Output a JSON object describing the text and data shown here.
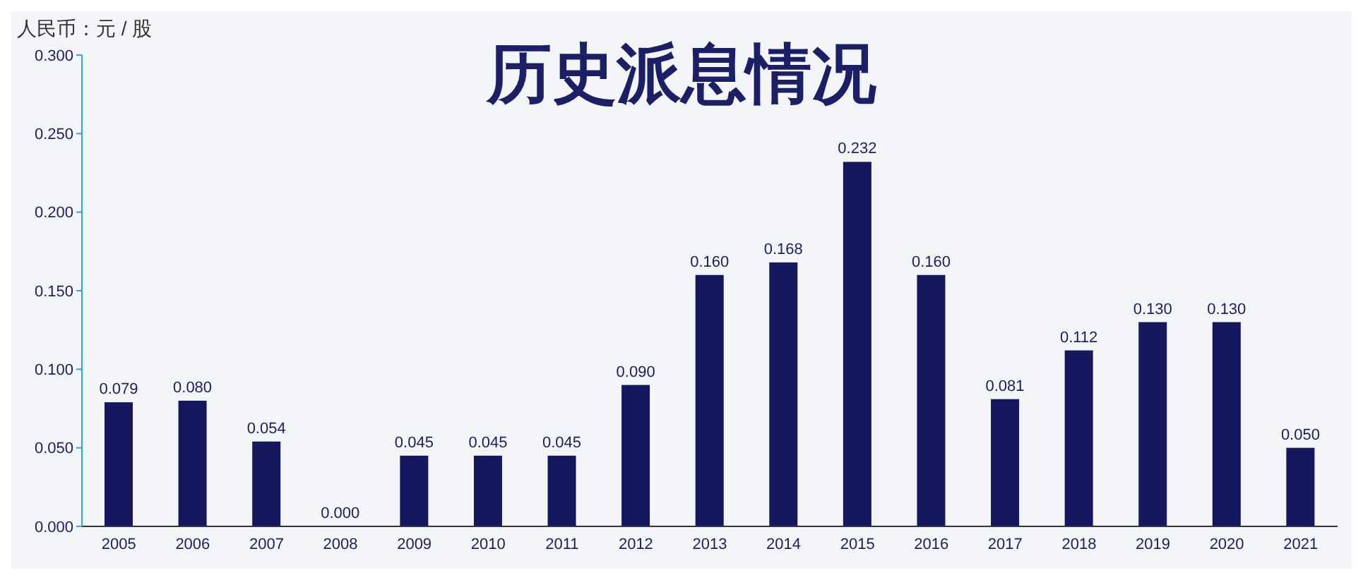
{
  "chart_data": {
    "type": "bar",
    "title": "历史派息情况",
    "ylabel": "人民币：元 / 股",
    "categories": [
      "2005",
      "2006",
      "2007",
      "2008",
      "2009",
      "2010",
      "2011",
      "2012",
      "2013",
      "2014",
      "2015",
      "2016",
      "2017",
      "2018",
      "2019",
      "2020",
      "2021"
    ],
    "values": [
      0.079,
      0.08,
      0.054,
      0,
      0.045,
      0.045,
      0.045,
      0.09,
      0.16,
      0.168,
      0.232,
      0.16,
      0.081,
      0.112,
      0.13,
      0.13,
      0.05
    ],
    "value_labels": [
      "0.079",
      "0.080",
      "0.054",
      "0.000",
      "0.045",
      "0.045",
      "0.045",
      "0.090",
      "0.160",
      "0.168",
      "0.232",
      "0.160",
      "0.081",
      "0.112",
      "0.130",
      "0.130",
      "0.050"
    ],
    "color": "#16185f",
    "ylim": [
      0,
      0.3
    ],
    "yticks": [
      {
        "value": 0,
        "label": "0.000"
      },
      {
        "value": 0.05,
        "label": "0.050"
      },
      {
        "value": 0.1,
        "label": "0.100"
      },
      {
        "value": 0.15,
        "label": "0.150"
      },
      {
        "value": 0.2,
        "label": "0.200"
      },
      {
        "value": 0.25,
        "label": "0.250"
      },
      {
        "value": 0.3,
        "label": "0.300"
      }
    ],
    "grid": false,
    "legend": false
  }
}
